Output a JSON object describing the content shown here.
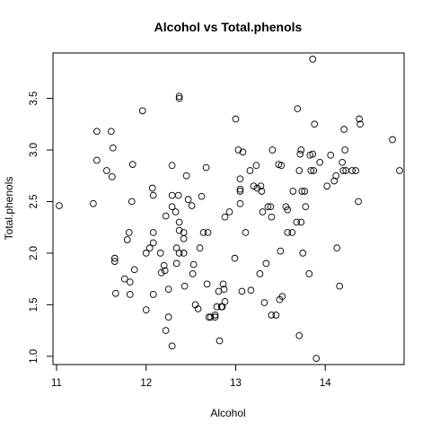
{
  "chart_data": {
    "type": "scatter",
    "title": "Alcohol vs Total.phenols",
    "xlabel": "Alcohol",
    "ylabel": "Total.phenols",
    "xlim": [
      10.96,
      14.88
    ],
    "ylim": [
      0.92,
      3.94
    ],
    "xticks": [
      11,
      12,
      13,
      14
    ],
    "yticks": [
      1.0,
      1.5,
      2.0,
      2.5,
      3.0,
      3.5
    ],
    "xtick_labels": [
      "11",
      "12",
      "13",
      "14"
    ],
    "ytick_labels": [
      "1.0",
      "1.5",
      "2.0",
      "2.5",
      "3.0",
      "3.5"
    ],
    "grid": false,
    "marker": "open-circle",
    "marker_color": "#000000",
    "points": [
      [
        11.03,
        2.46
      ],
      [
        11.41,
        2.48
      ],
      [
        11.45,
        3.18
      ],
      [
        11.45,
        2.9
      ],
      [
        11.56,
        2.8
      ],
      [
        11.61,
        3.18
      ],
      [
        11.62,
        2.74
      ],
      [
        11.63,
        3.02
      ],
      [
        11.65,
        1.95
      ],
      [
        11.65,
        1.92
      ],
      [
        11.66,
        1.61
      ],
      [
        11.76,
        1.75
      ],
      [
        11.79,
        2.13
      ],
      [
        11.81,
        2.2
      ],
      [
        11.82,
        1.6
      ],
      [
        11.82,
        1.72
      ],
      [
        11.84,
        2.5
      ],
      [
        11.85,
        2.86
      ],
      [
        11.87,
        1.84
      ],
      [
        11.96,
        3.38
      ],
      [
        12.0,
        2.0
      ],
      [
        12.0,
        1.45
      ],
      [
        12.04,
        2.05
      ],
      [
        12.07,
        2.63
      ],
      [
        12.08,
        2.56
      ],
      [
        12.08,
        2.2
      ],
      [
        12.08,
        2.1
      ],
      [
        12.08,
        1.6
      ],
      [
        12.16,
        2.0
      ],
      [
        12.17,
        1.81
      ],
      [
        12.2,
        1.88
      ],
      [
        12.21,
        1.83
      ],
      [
        12.22,
        1.25
      ],
      [
        12.22,
        2.36
      ],
      [
        12.25,
        1.38
      ],
      [
        12.25,
        1.65
      ],
      [
        12.29,
        2.85
      ],
      [
        12.29,
        2.56
      ],
      [
        12.29,
        2.45
      ],
      [
        12.29,
        1.1
      ],
      [
        12.33,
        2.4
      ],
      [
        12.34,
        1.9
      ],
      [
        12.34,
        2.05
      ],
      [
        12.36,
        2.56
      ],
      [
        12.37,
        2.3
      ],
      [
        12.37,
        2.22
      ],
      [
        12.37,
        3.52
      ],
      [
        12.37,
        3.5
      ],
      [
        12.37,
        2.0
      ],
      [
        12.42,
        2.14
      ],
      [
        12.42,
        2.2
      ],
      [
        12.42,
        2.0
      ],
      [
        12.43,
        1.68
      ],
      [
        12.45,
        2.75
      ],
      [
        12.47,
        2.52
      ],
      [
        12.51,
        2.46
      ],
      [
        12.52,
        1.8
      ],
      [
        12.53,
        1.89
      ],
      [
        12.55,
        1.5
      ],
      [
        12.58,
        1.46
      ],
      [
        12.6,
        2.05
      ],
      [
        12.62,
        2.55
      ],
      [
        12.64,
        2.2
      ],
      [
        12.67,
        2.83
      ],
      [
        12.68,
        1.7
      ],
      [
        12.69,
        2.2
      ],
      [
        12.7,
        1.38
      ],
      [
        12.72,
        1.38
      ],
      [
        12.77,
        1.38
      ],
      [
        12.77,
        1.4
      ],
      [
        12.79,
        1.48
      ],
      [
        12.81,
        1.63
      ],
      [
        12.82,
        1.15
      ],
      [
        12.84,
        1.48
      ],
      [
        12.85,
        1.48
      ],
      [
        12.86,
        1.7
      ],
      [
        12.87,
        1.65
      ],
      [
        12.88,
        2.35
      ],
      [
        12.88,
        1.53
      ],
      [
        12.93,
        2.4
      ],
      [
        12.99,
        1.95
      ],
      [
        13.0,
        3.3
      ],
      [
        13.03,
        3.0
      ],
      [
        13.05,
        2.72
      ],
      [
        13.05,
        2.6
      ],
      [
        13.05,
        2.62
      ],
      [
        13.05,
        2.48
      ],
      [
        13.07,
        1.63
      ],
      [
        13.08,
        2.98
      ],
      [
        13.11,
        2.2
      ],
      [
        13.16,
        2.8
      ],
      [
        13.17,
        1.64
      ],
      [
        13.2,
        2.65
      ],
      [
        13.23,
        2.85
      ],
      [
        13.24,
        2.63
      ],
      [
        13.27,
        1.8
      ],
      [
        13.28,
        2.65
      ],
      [
        13.29,
        2.6
      ],
      [
        13.3,
        2.4
      ],
      [
        13.32,
        1.52
      ],
      [
        13.34,
        1.9
      ],
      [
        13.36,
        2.45
      ],
      [
        13.39,
        2.45
      ],
      [
        13.4,
        1.4
      ],
      [
        13.4,
        2.35
      ],
      [
        13.41,
        3.0
      ],
      [
        13.45,
        1.4
      ],
      [
        13.48,
        2.86
      ],
      [
        13.49,
        1.55
      ],
      [
        13.5,
        2.02
      ],
      [
        13.51,
        2.85
      ],
      [
        13.52,
        1.58
      ],
      [
        13.56,
        2.45
      ],
      [
        13.58,
        2.2
      ],
      [
        13.58,
        2.42
      ],
      [
        13.63,
        2.2
      ],
      [
        13.64,
        2.6
      ],
      [
        13.68,
        2.3
      ],
      [
        13.69,
        3.4
      ],
      [
        13.71,
        2.8
      ],
      [
        13.71,
        1.2
      ],
      [
        13.72,
        2.96
      ],
      [
        13.73,
        3.0
      ],
      [
        13.73,
        2.3
      ],
      [
        13.74,
        2.6
      ],
      [
        13.75,
        2.0
      ],
      [
        13.77,
        2.6
      ],
      [
        13.78,
        2.45
      ],
      [
        13.82,
        1.8
      ],
      [
        13.83,
        2.95
      ],
      [
        13.84,
        2.8
      ],
      [
        13.86,
        2.96
      ],
      [
        13.86,
        3.88
      ],
      [
        13.87,
        2.8
      ],
      [
        13.88,
        3.25
      ],
      [
        13.9,
        0.98
      ],
      [
        13.94,
        2.88
      ],
      [
        14.02,
        2.65
      ],
      [
        14.06,
        2.95
      ],
      [
        14.1,
        2.7
      ],
      [
        14.12,
        2.75
      ],
      [
        14.13,
        2.05
      ],
      [
        14.16,
        1.68
      ],
      [
        14.19,
        2.88
      ],
      [
        14.2,
        2.8
      ],
      [
        14.21,
        3.2
      ],
      [
        14.22,
        3.0
      ],
      [
        14.23,
        2.8
      ],
      [
        14.3,
        2.8
      ],
      [
        14.34,
        2.8
      ],
      [
        14.37,
        2.5
      ],
      [
        14.38,
        3.3
      ],
      [
        14.39,
        3.25
      ],
      [
        14.75,
        3.1
      ],
      [
        14.83,
        2.8
      ]
    ]
  }
}
